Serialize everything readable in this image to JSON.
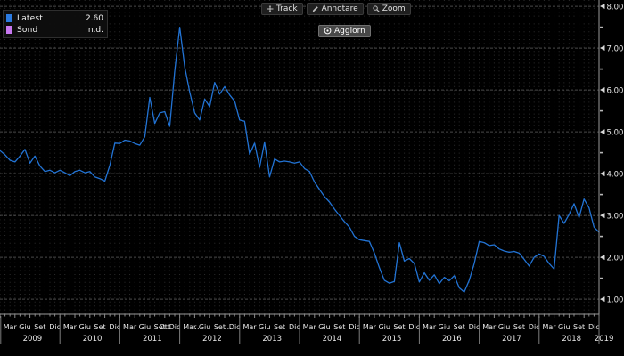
{
  "toolbar": {
    "track_label": "Track",
    "annotate_label": "Annotare",
    "zoom_label": "Zoom",
    "refresh_label": "Aggiorn"
  },
  "legend": {
    "items": [
      {
        "label": "Latest",
        "value": "2.60",
        "color": "#2b7ae0"
      },
      {
        "label": "Sond",
        "value": "n.d.",
        "color": "#c778f0"
      }
    ]
  },
  "chart_data": {
    "type": "line",
    "title": "",
    "xlabel": "",
    "ylabel": "",
    "legend_position": "top-left",
    "grid": true,
    "x_start": {
      "year": 2009,
      "month": 1
    },
    "x_end": {
      "year": 2019,
      "month": 1
    },
    "ylim": [
      0.64,
      8.15
    ],
    "y_ticks": [
      1,
      2,
      3,
      4,
      5,
      6,
      7,
      8
    ],
    "y_tick_labels": [
      "1.00",
      "2.00",
      "3.00",
      "4.00",
      "5.00",
      "6.00",
      "7.00",
      "8.00"
    ],
    "y_minor_step": 0.5,
    "series": [
      {
        "name": "Latest",
        "color": "#2273d4",
        "latest_value": 2.6,
        "monthly_values": [
          4.55,
          4.45,
          4.32,
          4.28,
          4.42,
          4.58,
          4.25,
          4.42,
          4.18,
          4.05,
          4.08,
          4.02,
          4.08,
          4.02,
          3.95,
          4.05,
          4.08,
          4.02,
          4.05,
          3.92,
          3.88,
          3.82,
          4.2,
          4.73,
          4.72,
          4.8,
          4.78,
          4.72,
          4.68,
          4.88,
          5.82,
          5.2,
          5.45,
          5.48,
          5.13,
          6.45,
          7.5,
          6.55,
          5.95,
          5.45,
          5.28,
          5.78,
          5.6,
          6.18,
          5.9,
          6.08,
          5.88,
          5.73,
          5.28,
          5.25,
          4.46,
          4.73,
          4.15,
          4.75,
          3.92,
          4.35,
          4.28,
          4.3,
          4.28,
          4.25,
          4.28,
          4.12,
          4.05,
          3.8,
          3.62,
          3.45,
          3.32,
          3.15,
          3.0,
          2.85,
          2.72,
          2.5,
          2.42,
          2.4,
          2.38,
          2.1,
          1.75,
          1.45,
          1.38,
          1.42,
          2.35,
          1.91,
          1.97,
          1.85,
          1.41,
          1.63,
          1.45,
          1.58,
          1.37,
          1.52,
          1.44,
          1.56,
          1.27,
          1.17,
          1.45,
          1.85,
          2.38,
          2.35,
          2.28,
          2.3,
          2.2,
          2.15,
          2.12,
          2.14,
          2.1,
          1.95,
          1.79,
          2.0,
          2.08,
          2.02,
          1.85,
          1.72,
          3.0,
          2.81,
          3.02,
          3.28,
          2.95,
          3.39,
          3.18,
          2.72,
          2.6
        ]
      }
    ],
    "x_axis_years": [
      {
        "label": "2009",
        "months": [
          {
            "label": "Mar",
            "m": 2
          },
          {
            "label": "Giu",
            "m": 5
          },
          {
            "label": "Set",
            "m": 8
          },
          {
            "label": "Dic",
            "m": 11
          }
        ]
      },
      {
        "label": "2010",
        "months": [
          {
            "label": "Mar",
            "m": 2
          },
          {
            "label": "Giu",
            "m": 5
          },
          {
            "label": "Set",
            "m": 8
          },
          {
            "label": "Dic",
            "m": 11
          }
        ]
      },
      {
        "label": "2011",
        "months": [
          {
            "label": "Mar",
            "m": 2
          },
          {
            "label": "Giu",
            "m": 5
          },
          {
            "label": "Set",
            "m": 8
          },
          {
            "label": "Ott",
            "m": 9
          },
          {
            "label": "Dic",
            "m": 11
          }
        ]
      },
      {
        "label": "2012",
        "months": [
          {
            "label": "Mar",
            "m": 2
          },
          {
            "label": "…",
            "m": 3.7
          },
          {
            "label": "Giu",
            "m": 5
          },
          {
            "label": "Set",
            "m": 8
          },
          {
            "label": "…",
            "m": 9.7
          },
          {
            "label": "Dic",
            "m": 11
          }
        ]
      },
      {
        "label": "2013",
        "months": [
          {
            "label": "Mar",
            "m": 2
          },
          {
            "label": "Giu",
            "m": 5
          },
          {
            "label": "Set",
            "m": 8
          },
          {
            "label": "Dic",
            "m": 11
          }
        ]
      },
      {
        "label": "2014",
        "months": [
          {
            "label": "Mar",
            "m": 2
          },
          {
            "label": "Giu",
            "m": 5
          },
          {
            "label": "Set",
            "m": 8
          },
          {
            "label": "Dic",
            "m": 11
          }
        ]
      },
      {
        "label": "2015",
        "months": [
          {
            "label": "Mar",
            "m": 2
          },
          {
            "label": "Giu",
            "m": 5
          },
          {
            "label": "Set",
            "m": 8
          },
          {
            "label": "Dic",
            "m": 11
          }
        ]
      },
      {
        "label": "2016",
        "months": [
          {
            "label": "Mar",
            "m": 2
          },
          {
            "label": "Giu",
            "m": 5
          },
          {
            "label": "Set",
            "m": 8
          },
          {
            "label": "Dic",
            "m": 11
          }
        ]
      },
      {
        "label": "2017",
        "months": [
          {
            "label": "Mar",
            "m": 2
          },
          {
            "label": "Giu",
            "m": 5
          },
          {
            "label": "Set",
            "m": 8
          },
          {
            "label": "Dic",
            "m": 11
          }
        ]
      },
      {
        "label": "2018",
        "months": [
          {
            "label": "Mar",
            "m": 2
          },
          {
            "label": "Giu",
            "m": 5
          },
          {
            "label": "Set",
            "m": 8
          },
          {
            "label": "Dic",
            "m": 11
          }
        ]
      },
      {
        "label": "2019",
        "months": []
      }
    ],
    "colors": {
      "background": "#000000",
      "line": "#2273d4",
      "v_grid_dots": "#2c2c2c",
      "h_grid": "#646464",
      "axis": "#9a9a9a",
      "tick_text": "#e8e8e8"
    }
  }
}
